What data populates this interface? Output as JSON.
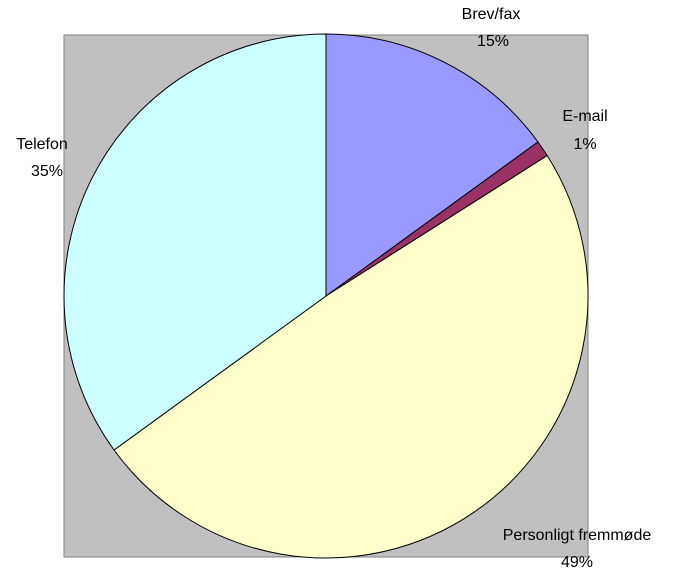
{
  "chart_data": {
    "type": "pie",
    "categories": [
      "Brev/fax",
      "E-mail",
      "Personligt fremmøde",
      "Telefon"
    ],
    "values": [
      15,
      1,
      49,
      35
    ],
    "value_labels": [
      "15%",
      "1%",
      "49%",
      "35%"
    ],
    "colors": [
      "#9999ff",
      "#993366",
      "#ffffcc",
      "#ccffff"
    ]
  }
}
